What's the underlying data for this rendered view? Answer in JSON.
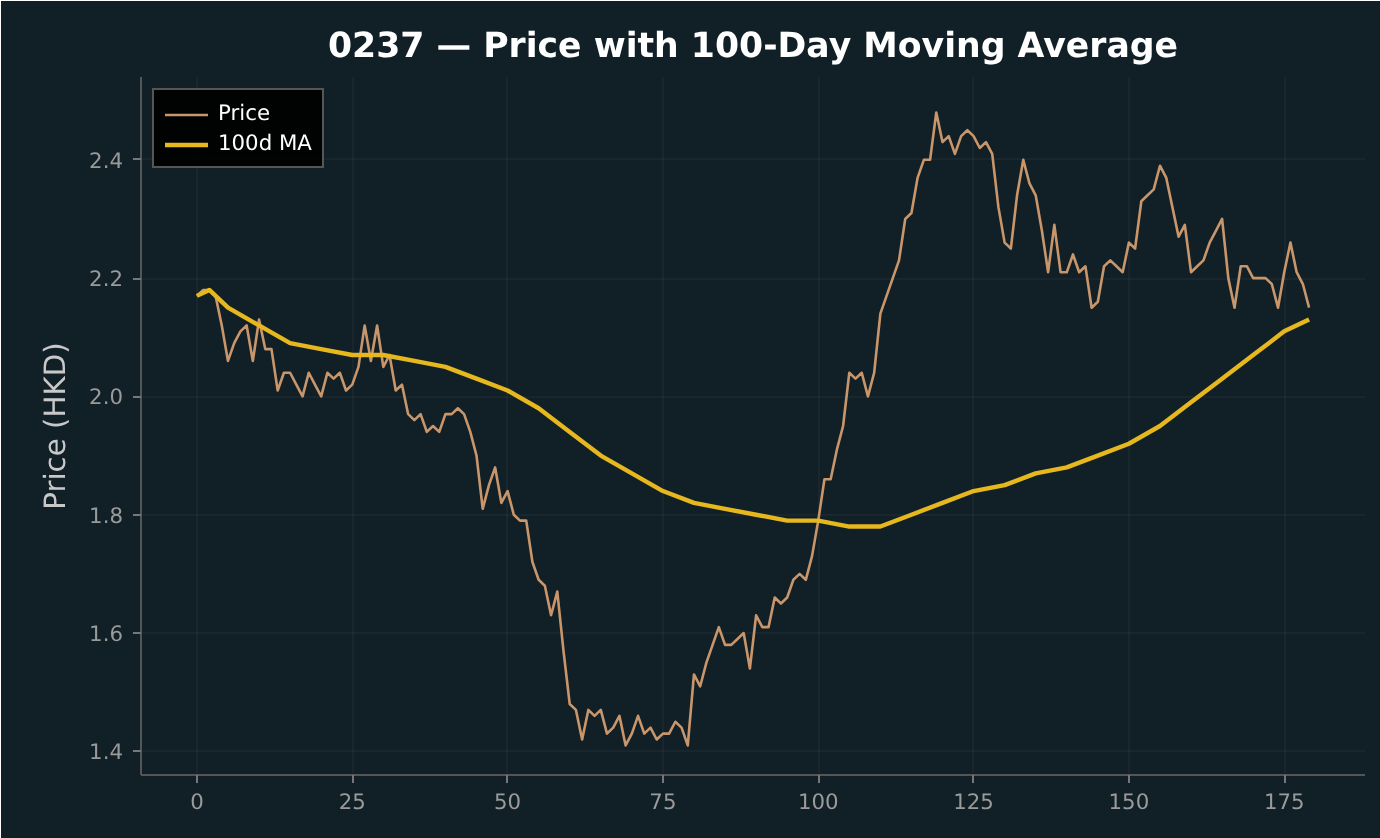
{
  "chart_data": {
    "type": "line",
    "title": "0237 — Price with 100-Day Moving Average",
    "ylabel": "Price (HKD)",
    "xlim": [
      -9,
      188
    ],
    "ylim": [
      1.36,
      2.54
    ],
    "xticks": [
      0,
      25,
      50,
      75,
      100,
      125,
      150,
      175
    ],
    "yticks": [
      {
        "value": 1.4,
        "label": "1.4"
      },
      {
        "value": 1.6,
        "label": "1.6"
      },
      {
        "value": 1.8,
        "label": "1.8"
      },
      {
        "value": 2.0,
        "label": "2.0"
      },
      {
        "value": 2.2,
        "label": "2.2"
      },
      {
        "value": 2.4,
        "label": "2.4"
      }
    ],
    "grid": true,
    "legend": "top left",
    "series": [
      {
        "name": "Price",
        "color": "#c8966a",
        "x": [
          0,
          1,
          2,
          3,
          4,
          5,
          6,
          7,
          8,
          9,
          10,
          11,
          12,
          13,
          14,
          15,
          16,
          17,
          18,
          19,
          20,
          21,
          22,
          23,
          24,
          25,
          26,
          27,
          28,
          29,
          30,
          31,
          32,
          33,
          34,
          35,
          36,
          37,
          38,
          39,
          40,
          41,
          42,
          43,
          44,
          45,
          46,
          47,
          48,
          49,
          50,
          51,
          52,
          53,
          54,
          55,
          56,
          57,
          58,
          59,
          60,
          61,
          62,
          63,
          64,
          65,
          66,
          67,
          68,
          69,
          70,
          71,
          72,
          73,
          74,
          75,
          76,
          77,
          78,
          79,
          80,
          81,
          82,
          83,
          84,
          85,
          86,
          87,
          88,
          89,
          90,
          91,
          92,
          93,
          94,
          95,
          96,
          97,
          98,
          99,
          100,
          101,
          102,
          103,
          104,
          105,
          106,
          107,
          108,
          109,
          110,
          111,
          112,
          113,
          114,
          115,
          116,
          117,
          118,
          119,
          120,
          121,
          122,
          123,
          124,
          125,
          126,
          127,
          128,
          129,
          130,
          131,
          132,
          133,
          134,
          135,
          136,
          137,
          138,
          139,
          140,
          141,
          142,
          143,
          144,
          145,
          146,
          147,
          148,
          149,
          150,
          151,
          152,
          153,
          154,
          155,
          156,
          157,
          158,
          159,
          160,
          161,
          162,
          163,
          164,
          165,
          166,
          167,
          168,
          169,
          170,
          171,
          172,
          173,
          174,
          175,
          176,
          177,
          178,
          179
        ],
        "values": [
          2.17,
          2.18,
          2.18,
          2.17,
          2.12,
          2.06,
          2.09,
          2.11,
          2.12,
          2.06,
          2.13,
          2.08,
          2.08,
          2.01,
          2.04,
          2.04,
          2.02,
          2.0,
          2.04,
          2.02,
          2.0,
          2.04,
          2.03,
          2.04,
          2.01,
          2.02,
          2.05,
          2.12,
          2.06,
          2.12,
          2.05,
          2.07,
          2.01,
          2.02,
          1.97,
          1.96,
          1.97,
          1.94,
          1.95,
          1.94,
          1.97,
          1.97,
          1.98,
          1.97,
          1.94,
          1.9,
          1.81,
          1.85,
          1.88,
          1.82,
          1.84,
          1.8,
          1.79,
          1.79,
          1.72,
          1.69,
          1.68,
          1.63,
          1.67,
          1.57,
          1.48,
          1.47,
          1.42,
          1.47,
          1.46,
          1.47,
          1.43,
          1.44,
          1.46,
          1.41,
          1.43,
          1.46,
          1.43,
          1.44,
          1.42,
          1.43,
          1.43,
          1.45,
          1.44,
          1.41,
          1.53,
          1.51,
          1.55,
          1.58,
          1.61,
          1.58,
          1.58,
          1.59,
          1.6,
          1.54,
          1.63,
          1.61,
          1.61,
          1.66,
          1.65,
          1.66,
          1.69,
          1.7,
          1.69,
          1.73,
          1.79,
          1.86,
          1.86,
          1.91,
          1.95,
          2.04,
          2.03,
          2.04,
          2.0,
          2.04,
          2.14,
          2.17,
          2.2,
          2.23,
          2.3,
          2.31,
          2.37,
          2.4,
          2.4,
          2.48,
          2.43,
          2.44,
          2.41,
          2.44,
          2.45,
          2.44,
          2.42,
          2.43,
          2.41,
          2.32,
          2.26,
          2.25,
          2.34,
          2.4,
          2.36,
          2.34,
          2.28,
          2.21,
          2.29,
          2.21,
          2.21,
          2.24,
          2.21,
          2.22,
          2.15,
          2.16,
          2.22,
          2.23,
          2.22,
          2.21,
          2.26,
          2.25,
          2.33,
          2.34,
          2.35,
          2.39,
          2.37,
          2.32,
          2.27,
          2.29,
          2.21,
          2.22,
          2.23,
          2.26,
          2.28,
          2.3,
          2.2,
          2.15,
          2.22,
          2.22,
          2.2,
          2.2,
          2.2,
          2.19,
          2.15,
          2.21,
          2.26,
          2.21,
          2.19,
          2.15
        ]
      },
      {
        "name": "100d MA",
        "color": "#e6b81e",
        "x": [
          0,
          2,
          5,
          10,
          15,
          20,
          25,
          30,
          35,
          40,
          45,
          50,
          55,
          60,
          65,
          70,
          75,
          80,
          85,
          90,
          95,
          100,
          105,
          110,
          115,
          120,
          125,
          130,
          135,
          140,
          145,
          150,
          155,
          160,
          165,
          170,
          175,
          179
        ],
        "values": [
          2.17,
          2.18,
          2.15,
          2.12,
          2.09,
          2.08,
          2.07,
          2.07,
          2.06,
          2.05,
          2.03,
          2.01,
          1.98,
          1.94,
          1.9,
          1.87,
          1.84,
          1.82,
          1.81,
          1.8,
          1.79,
          1.79,
          1.78,
          1.78,
          1.8,
          1.82,
          1.84,
          1.85,
          1.87,
          1.88,
          1.9,
          1.92,
          1.95,
          1.99,
          2.03,
          2.07,
          2.11,
          2.13
        ]
      }
    ]
  }
}
